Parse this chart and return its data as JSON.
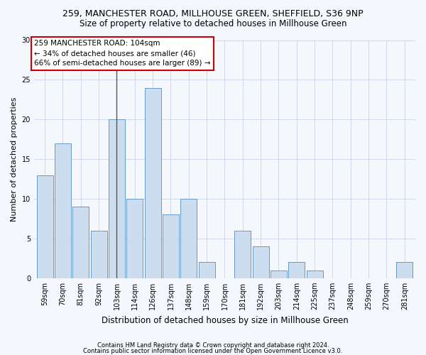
{
  "title1": "259, MANCHESTER ROAD, MILLHOUSE GREEN, SHEFFIELD, S36 9NP",
  "title2": "Size of property relative to detached houses in Millhouse Green",
  "xlabel": "Distribution of detached houses by size in Millhouse Green",
  "ylabel": "Number of detached properties",
  "categories": [
    "59sqm",
    "70sqm",
    "81sqm",
    "92sqm",
    "103sqm",
    "114sqm",
    "126sqm",
    "137sqm",
    "148sqm",
    "159sqm",
    "170sqm",
    "181sqm",
    "192sqm",
    "203sqm",
    "214sqm",
    "225sqm",
    "237sqm",
    "248sqm",
    "259sqm",
    "270sqm",
    "281sqm"
  ],
  "values": [
    13,
    17,
    9,
    6,
    20,
    10,
    24,
    8,
    10,
    2,
    0,
    6,
    4,
    1,
    2,
    1,
    0,
    0,
    0,
    0,
    2
  ],
  "bar_color": "#ccddf0",
  "bar_edge_color": "#6699cc",
  "highlight_bar_index": 4,
  "highlight_line_color": "#555555",
  "ylim": [
    0,
    30
  ],
  "yticks": [
    0,
    5,
    10,
    15,
    20,
    25,
    30
  ],
  "annotation_text": "259 MANCHESTER ROAD: 104sqm\n← 34% of detached houses are smaller (46)\n66% of semi-detached houses are larger (89) →",
  "annotation_box_color": "#ffffff",
  "annotation_box_edgecolor": "#cc0000",
  "footer1": "Contains HM Land Registry data © Crown copyright and database right 2024.",
  "footer2": "Contains public sector information licensed under the Open Government Licence v3.0.",
  "background_color": "#f4f7fc",
  "title1_fontsize": 9,
  "title2_fontsize": 8.5,
  "xlabel_fontsize": 8.5,
  "ylabel_fontsize": 8,
  "tick_fontsize": 7,
  "footer_fontsize": 6,
  "annot_fontsize": 7.5
}
